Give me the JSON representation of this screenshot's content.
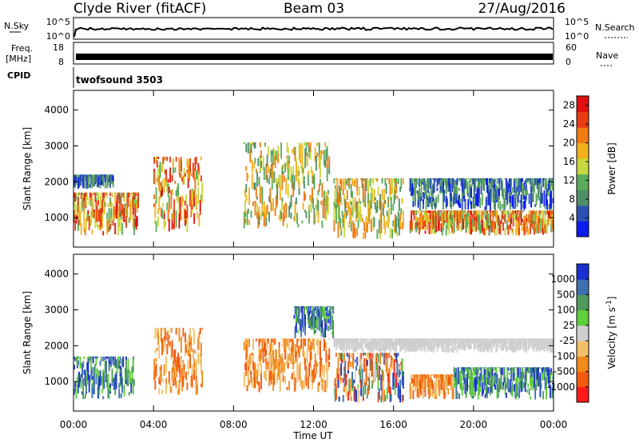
{
  "header": {
    "station": "Clyde River (fitACF)",
    "beam": "Beam 03",
    "date": "27/Aug/2016"
  },
  "top_panels": {
    "nsky_label": "N.Sky",
    "nsky_ticks": [
      "10^5",
      "10^0"
    ],
    "nsearch_label": "N.Search",
    "freq_label_1": "Freq.",
    "freq_label_2": "[MHz]",
    "freq_ticks": [
      "18",
      "8"
    ],
    "nave_label": "Nave",
    "nave_ticks": [
      "60",
      "0"
    ],
    "cpid_label": "CPID",
    "cpid_value": "twofsound 3503"
  },
  "colors": {
    "power_scale": [
      "#0a1cf0",
      "#2f4fb5",
      "#4f8f68",
      "#5aab5a",
      "#c8d840",
      "#f2b11c",
      "#f07a14",
      "#e83b12",
      "#e01010"
    ],
    "velocity_scale": [
      "#ff1a1a",
      "#f25a10",
      "#f08b1a",
      "#f3c06a",
      "#cfcfcf",
      "#5fcf3a",
      "#4f9a5a",
      "#3f6fb0",
      "#1a2fd0"
    ]
  },
  "chart_data": [
    {
      "type": "heatmap",
      "panel": "power",
      "ylabel": "Slant Range [km]",
      "yticks": [
        1000,
        2000,
        3000,
        4000
      ],
      "ylim": [
        180,
        4550
      ],
      "xticks": [
        "00:00",
        "04:00",
        "08:00",
        "12:00",
        "16:00",
        "20:00",
        "00:00"
      ],
      "xlim_hours": [
        0,
        24
      ],
      "colorbar_label": "Power [dB]",
      "colorbar_ticks": [
        "4",
        "8",
        "12",
        "16",
        "20",
        "24",
        "28"
      ],
      "colorbar_range": [
        0,
        30
      ],
      "echo_regions": [
        {
          "t0": 0.0,
          "t1": 3.2,
          "r0": 500,
          "r1": 1700,
          "level": "high"
        },
        {
          "t0": 0.0,
          "t1": 2.0,
          "r0": 1800,
          "r1": 2200,
          "level": "low"
        },
        {
          "t0": 4.0,
          "t1": 6.4,
          "r0": 600,
          "r1": 2700,
          "level": "high"
        },
        {
          "t0": 8.5,
          "t1": 12.8,
          "r0": 700,
          "r1": 3100,
          "level": "mid"
        },
        {
          "t0": 13.0,
          "t1": 16.5,
          "r0": 400,
          "r1": 2100,
          "level": "mid"
        },
        {
          "t0": 16.8,
          "t1": 24.0,
          "r0": 500,
          "r1": 1200,
          "level": "high"
        },
        {
          "t0": 16.8,
          "t1": 24.0,
          "r0": 1200,
          "r1": 2100,
          "level": "low"
        }
      ]
    },
    {
      "type": "heatmap",
      "panel": "velocity",
      "ylabel": "Slant Range [km]",
      "yticks": [
        1000,
        2000,
        3000,
        4000
      ],
      "ylim": [
        180,
        4550
      ],
      "xticks": [
        "00:00",
        "04:00",
        "08:00",
        "12:00",
        "16:00",
        "20:00",
        "00:00"
      ],
      "xlim_hours": [
        0,
        24
      ],
      "xlabel": "Time UT",
      "colorbar_label": "Velocity [m s^-1]",
      "colorbar_ticks": [
        "1000",
        "500",
        "100",
        "25",
        "-25",
        "-100",
        "-500",
        "-1000"
      ],
      "echo_regions": [
        {
          "t0": 0.0,
          "t1": 3.0,
          "r0": 500,
          "r1": 1700,
          "level": "toward"
        },
        {
          "t0": 4.0,
          "t1": 6.4,
          "r0": 600,
          "r1": 2500,
          "level": "away"
        },
        {
          "t0": 8.5,
          "t1": 12.8,
          "r0": 700,
          "r1": 2200,
          "level": "away"
        },
        {
          "t0": 11.0,
          "t1": 13.0,
          "r0": 2200,
          "r1": 3100,
          "level": "toward"
        },
        {
          "t0": 13.0,
          "t1": 16.5,
          "r0": 400,
          "r1": 1800,
          "level": "mixed"
        },
        {
          "t0": 16.8,
          "t1": 19.0,
          "r0": 500,
          "r1": 1200,
          "level": "away"
        },
        {
          "t0": 19.0,
          "t1": 24.0,
          "r0": 500,
          "r1": 1400,
          "level": "toward"
        },
        {
          "t0": 13.0,
          "t1": 24.0,
          "r0": 1800,
          "r1": 2200,
          "level": "ground"
        }
      ]
    }
  ]
}
